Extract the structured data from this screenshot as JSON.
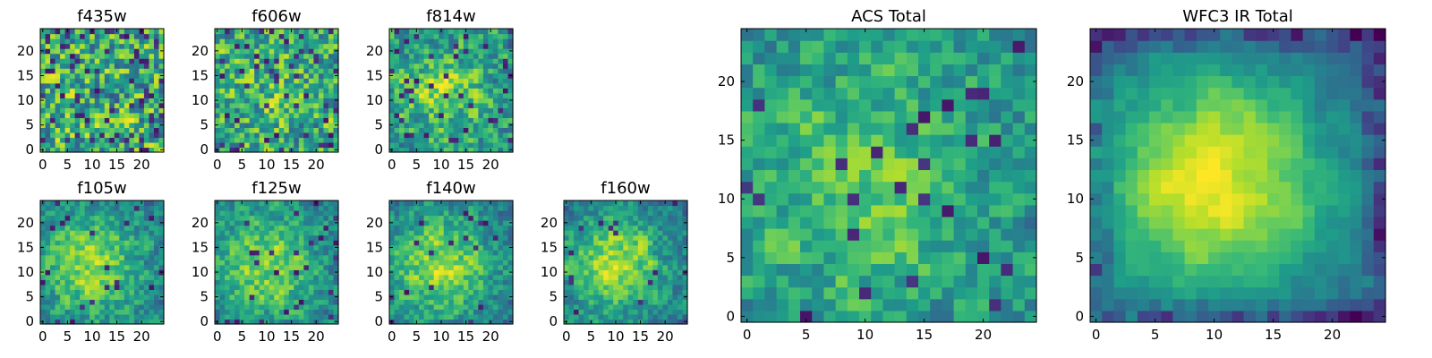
{
  "chart_data": [
    {
      "type": "heatmap",
      "title": "f435w",
      "xticks": [
        0,
        5,
        10,
        15,
        20
      ],
      "yticks": [
        0,
        5,
        10,
        15,
        20
      ],
      "xlim": [
        -0.5,
        24.5
      ],
      "ylim": [
        -0.5,
        24.5
      ],
      "colormap": "viridis",
      "grid": "25x25",
      "center_strength": 0.0,
      "noise": 0.62,
      "dark_fraction": 0.1
    },
    {
      "type": "heatmap",
      "title": "f606w",
      "xticks": [
        0,
        5,
        10,
        15,
        20
      ],
      "yticks": [
        0,
        5,
        10,
        15,
        20
      ],
      "xlim": [
        -0.5,
        24.5
      ],
      "ylim": [
        -0.5,
        24.5
      ],
      "colormap": "viridis",
      "grid": "25x25",
      "center_strength": 0.08,
      "noise": 0.55,
      "dark_fraction": 0.08
    },
    {
      "type": "heatmap",
      "title": "f814w",
      "xticks": [
        0,
        5,
        10,
        15,
        20
      ],
      "yticks": [
        0,
        5,
        10,
        15,
        20
      ],
      "xlim": [
        -0.5,
        24.5
      ],
      "ylim": [
        -0.5,
        24.5
      ],
      "colormap": "viridis",
      "grid": "25x25",
      "center_strength": 0.28,
      "noise": 0.42,
      "dark_fraction": 0.05
    },
    {
      "type": "heatmap",
      "title": "f105w",
      "xticks": [
        0,
        5,
        10,
        15,
        20
      ],
      "yticks": [
        0,
        5,
        10,
        15,
        20
      ],
      "xlim": [
        -0.5,
        24.5
      ],
      "ylim": [
        -0.5,
        24.5
      ],
      "colormap": "viridis",
      "grid": "25x25",
      "center_strength": 0.42,
      "noise": 0.3,
      "dark_fraction": 0.03
    },
    {
      "type": "heatmap",
      "title": "f125w",
      "xticks": [
        0,
        5,
        10,
        15,
        20
      ],
      "yticks": [
        0,
        5,
        10,
        15,
        20
      ],
      "xlim": [
        -0.5,
        24.5
      ],
      "ylim": [
        -0.5,
        24.5
      ],
      "colormap": "viridis",
      "grid": "25x25",
      "center_strength": 0.42,
      "noise": 0.3,
      "dark_fraction": 0.03
    },
    {
      "type": "heatmap",
      "title": "f140w",
      "xticks": [
        0,
        5,
        10,
        15,
        20
      ],
      "yticks": [
        0,
        5,
        10,
        15,
        20
      ],
      "xlim": [
        -0.5,
        24.5
      ],
      "ylim": [
        -0.5,
        24.5
      ],
      "colormap": "viridis",
      "grid": "25x25",
      "center_strength": 0.45,
      "noise": 0.3,
      "dark_fraction": 0.03
    },
    {
      "type": "heatmap",
      "title": "f160w",
      "xticks": [
        0,
        5,
        10,
        15,
        20
      ],
      "yticks": [
        0,
        5,
        10,
        15,
        20
      ],
      "xlim": [
        -0.5,
        24.5
      ],
      "ylim": [
        -0.5,
        24.5
      ],
      "colormap": "viridis",
      "grid": "25x25",
      "center_strength": 0.48,
      "noise": 0.28,
      "dark_fraction": 0.03
    },
    {
      "type": "heatmap",
      "title": "ACS Total",
      "xticks": [
        0,
        5,
        10,
        15,
        20
      ],
      "yticks": [
        0,
        5,
        10,
        15,
        20
      ],
      "xlim": [
        -0.5,
        24.5
      ],
      "ylim": [
        -0.5,
        24.5
      ],
      "colormap": "viridis",
      "grid": "25x25",
      "center_strength": 0.25,
      "noise": 0.3,
      "dark_fraction": 0.04
    },
    {
      "type": "heatmap",
      "title": "WFC3 IR Total",
      "xticks": [
        0,
        5,
        10,
        15,
        20
      ],
      "yticks": [
        0,
        5,
        10,
        15,
        20
      ],
      "xlim": [
        -0.5,
        24.5
      ],
      "ylim": [
        -0.5,
        24.5
      ],
      "colormap": "viridis",
      "grid": "25x25",
      "center_strength": 0.7,
      "noise": 0.1,
      "dark_fraction": 0.0
    }
  ]
}
